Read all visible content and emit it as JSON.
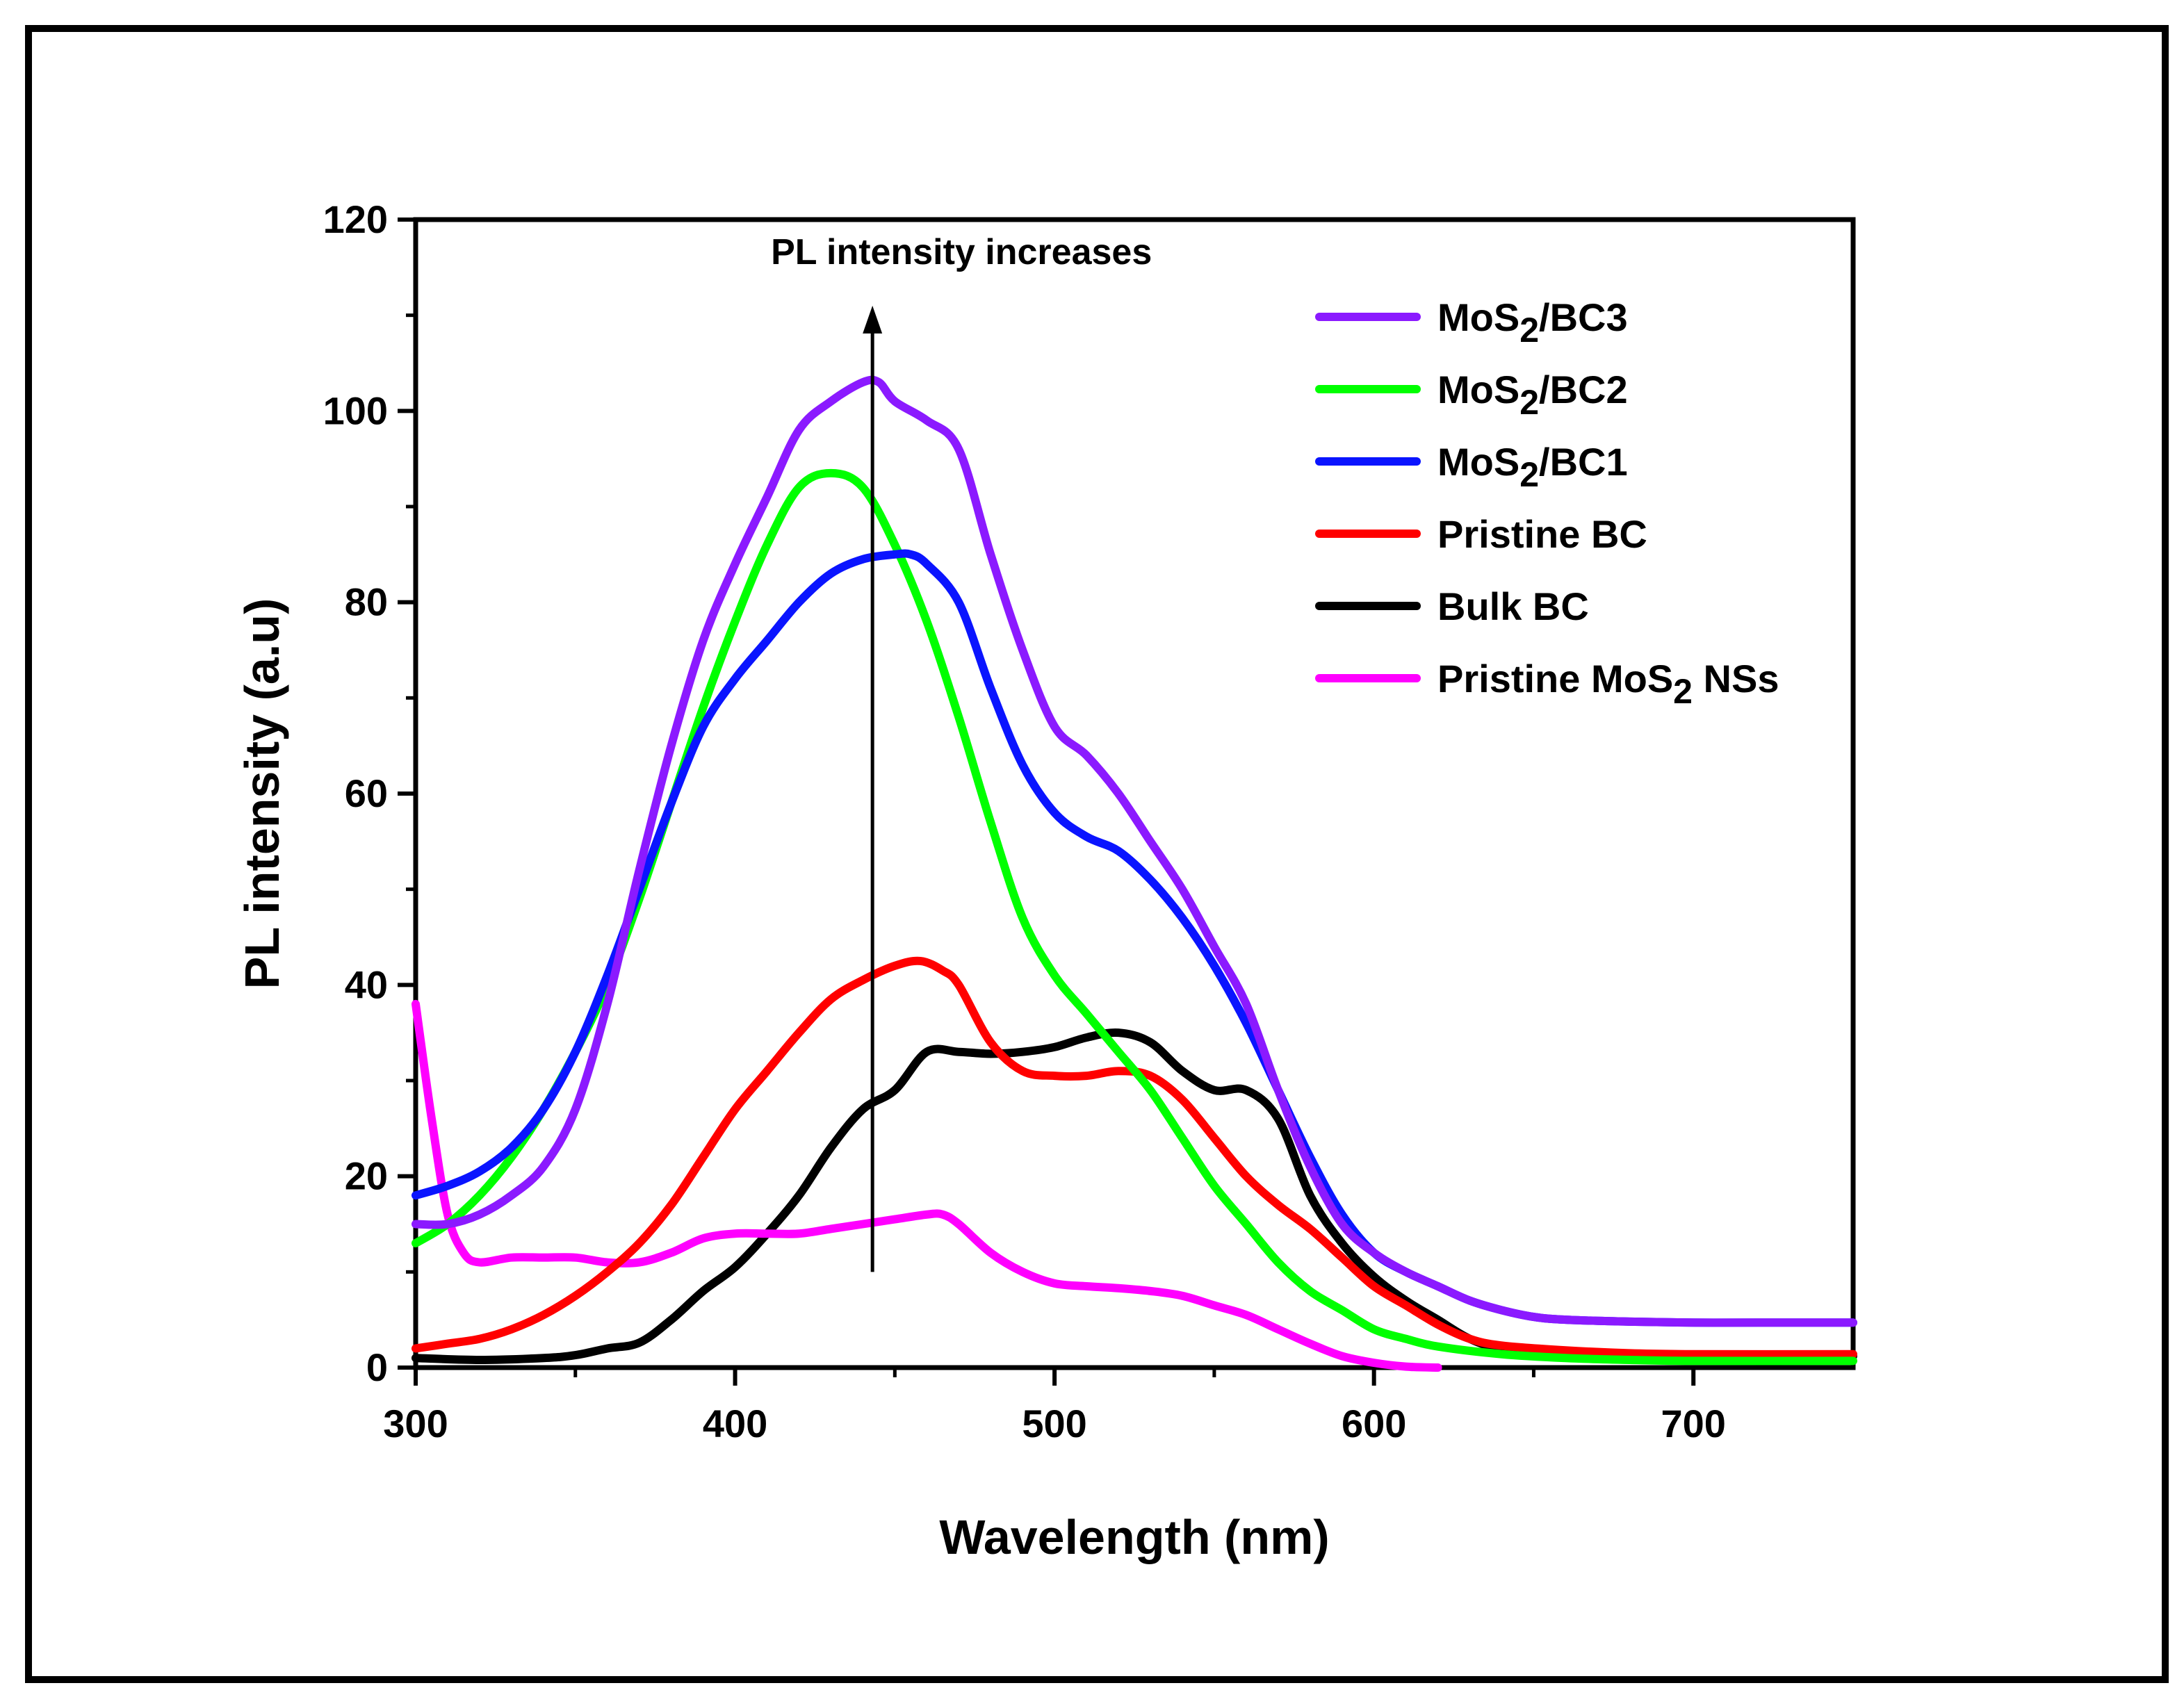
{
  "chart_data": {
    "type": "line",
    "title": "",
    "xlabel": "Wavelength (nm)",
    "ylabel": "PL intensity (a.u)",
    "xlim": [
      300,
      750
    ],
    "ylim": [
      0,
      120
    ],
    "xticks": [
      300,
      400,
      500,
      600,
      700
    ],
    "yticks": [
      0,
      20,
      40,
      60,
      80,
      100,
      120
    ],
    "annotation": {
      "text": "PL intensity increases",
      "arrow_x": 443,
      "arrow_from": 10,
      "arrow_to": 111
    },
    "legend_position": "top-right",
    "series": [
      {
        "name": "MoS2/BC3",
        "label_main": "MoS",
        "label_sub": "2",
        "label_rest": "/BC3",
        "color": "#8b1aff",
        "x": [
          300,
          310,
          320,
          330,
          340,
          350,
          360,
          370,
          380,
          390,
          400,
          410,
          420,
          430,
          440,
          445,
          450,
          460,
          470,
          480,
          490,
          500,
          510,
          520,
          530,
          540,
          550,
          560,
          570,
          580,
          590,
          600,
          610,
          620,
          630,
          640,
          650,
          660,
          680,
          700,
          720,
          750
        ],
        "y": [
          15,
          15,
          16,
          18,
          21,
          27,
          38,
          52,
          65,
          76,
          84,
          91,
          98,
          101,
          103,
          103,
          101,
          99,
          96,
          85,
          75,
          67,
          64,
          60,
          55,
          50,
          44,
          38,
          29,
          21,
          15,
          12,
          10,
          8.5,
          7,
          6,
          5.3,
          5.0,
          4.8,
          4.7,
          4.7,
          4.7
        ]
      },
      {
        "name": "MoS2/BC2",
        "label_main": "MoS",
        "label_sub": "2",
        "label_rest": "/BC2",
        "color": "#00ff00",
        "x": [
          300,
          310,
          320,
          330,
          340,
          350,
          360,
          370,
          380,
          390,
          400,
          410,
          420,
          430,
          440,
          450,
          460,
          470,
          480,
          490,
          500,
          510,
          520,
          530,
          540,
          550,
          560,
          570,
          580,
          590,
          600,
          610,
          620,
          640,
          660,
          680,
          700,
          750
        ],
        "y": [
          13,
          15,
          18,
          22,
          27,
          33,
          40,
          49,
          59,
          69,
          78,
          86,
          92,
          93.5,
          92,
          86,
          78,
          68,
          57,
          47,
          41,
          37,
          33,
          29,
          24,
          19,
          15,
          11,
          8,
          6,
          4,
          3,
          2.2,
          1.4,
          1.0,
          0.8,
          0.7,
          0.7
        ]
      },
      {
        "name": "MoS2/BC1",
        "label_main": "MoS",
        "label_sub": "2",
        "label_rest": "/BC1",
        "color": "#0a14ff",
        "x": [
          300,
          310,
          320,
          330,
          340,
          350,
          360,
          370,
          380,
          390,
          400,
          410,
          420,
          430,
          440,
          450,
          455,
          460,
          470,
          480,
          490,
          500,
          510,
          520,
          530,
          540,
          550,
          560,
          570,
          580,
          590,
          600,
          610,
          620,
          630,
          640,
          650,
          660,
          680,
          700,
          720,
          750
        ],
        "y": [
          18,
          19,
          20.5,
          23,
          27,
          33,
          41,
          50,
          59,
          67,
          72,
          76,
          80,
          83,
          84.5,
          85,
          85,
          84,
          80,
          71,
          63,
          58,
          55.5,
          54,
          51,
          47,
          42,
          36,
          29,
          22,
          16,
          12,
          10,
          8.5,
          7,
          6,
          5.3,
          5.0,
          4.8,
          4.7,
          4.7,
          4.7
        ]
      },
      {
        "name": "Pristine BC",
        "label_main": "Pristine BC",
        "label_sub": "",
        "label_rest": "",
        "color": "#ff0000",
        "x": [
          300,
          310,
          320,
          330,
          340,
          350,
          360,
          370,
          380,
          390,
          400,
          410,
          420,
          430,
          440,
          450,
          458,
          465,
          470,
          480,
          490,
          500,
          510,
          520,
          530,
          540,
          550,
          560,
          570,
          580,
          590,
          600,
          610,
          620,
          630,
          640,
          660,
          680,
          700,
          750
        ],
        "y": [
          2,
          2.5,
          3,
          4,
          5.5,
          7.5,
          10,
          13,
          17,
          22,
          27,
          31,
          35,
          38.5,
          40.5,
          42,
          42.5,
          41.5,
          40,
          34,
          31,
          30.5,
          30.5,
          31,
          30.5,
          28,
          24,
          20,
          17,
          14.5,
          11.5,
          8.5,
          6.5,
          4.5,
          3.0,
          2.3,
          1.8,
          1.5,
          1.4,
          1.4
        ]
      },
      {
        "name": "Bulk BC",
        "label_main": "Bulk BC",
        "label_sub": "",
        "label_rest": "",
        "color": "#000000",
        "x": [
          300,
          320,
          340,
          350,
          360,
          370,
          380,
          390,
          400,
          410,
          420,
          430,
          440,
          450,
          460,
          470,
          480,
          490,
          500,
          510,
          520,
          530,
          540,
          550,
          560,
          570,
          580,
          590,
          600,
          610,
          620,
          630,
          640,
          660,
          680,
          700,
          750
        ],
        "y": [
          1,
          0.8,
          1,
          1.3,
          2,
          2.6,
          5,
          8,
          10.5,
          14,
          18,
          23,
          27,
          29,
          33,
          33,
          32.8,
          33,
          33.5,
          34.5,
          35,
          34,
          31,
          29,
          29,
          26,
          18,
          13,
          9.5,
          7,
          5,
          3,
          2,
          1.5,
          1.3,
          1.2,
          1.2
        ]
      },
      {
        "name": "Pristine MoS2 NSs",
        "label_main": "Pristine MoS",
        "label_sub": "2",
        "label_rest": " NSs",
        "color": "#ff00ff",
        "x": [
          300,
          305,
          310,
          315,
          320,
          330,
          340,
          350,
          360,
          370,
          380,
          390,
          400,
          410,
          420,
          430,
          440,
          450,
          460,
          465,
          470,
          480,
          490,
          500,
          510,
          520,
          530,
          540,
          550,
          560,
          570,
          580,
          590,
          600,
          610,
          620
        ],
        "y": [
          38,
          26,
          16,
          12,
          11,
          11.5,
          11.5,
          11.5,
          11,
          11,
          12,
          13.5,
          14,
          14,
          14,
          14.5,
          15,
          15.5,
          16,
          16,
          15,
          12,
          10,
          8.8,
          8.5,
          8.3,
          8,
          7.5,
          6.5,
          5.5,
          4,
          2.5,
          1.2,
          0.5,
          0.1,
          0
        ]
      }
    ]
  }
}
